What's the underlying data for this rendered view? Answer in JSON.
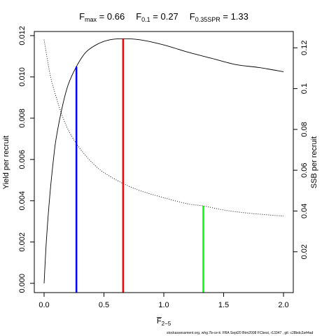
{
  "title": {
    "parts": [
      {
        "main": "F",
        "sub": "max",
        "value": " = 0.66"
      },
      {
        "main": "F",
        "sub": "0.1",
        "value": " = 0.27"
      },
      {
        "main": "F",
        "sub": "0.35SPR",
        "value": " = 1.33"
      }
    ]
  },
  "footer": "stockassessment.org, whg.7b-ce-k: FRA Sept20 Btrn2008 FCbest, r13347 , git: c28bdc2a44ad",
  "chart_data": {
    "type": "line",
    "xlabel": {
      "main": "F",
      "sub": "2−5",
      "overline": true
    },
    "ylabel_left": "Yield per recruit",
    "ylabel_right": "SSB per recruit",
    "xlim": [
      0,
      2
    ],
    "ylim_left": [
      -0.00045,
      0.0122
    ],
    "ylim_right": [
      0.0,
      0.128
    ],
    "x_ticks": [
      {
        "value": 0.0,
        "label": "0.0"
      },
      {
        "value": 0.5,
        "label": "0.5"
      },
      {
        "value": 1.0,
        "label": "1.0"
      },
      {
        "value": 1.5,
        "label": "1.5"
      },
      {
        "value": 2.0,
        "label": "2.0"
      }
    ],
    "y_left_ticks": [
      {
        "value": 0.0,
        "label": "0.000"
      },
      {
        "value": 0.002,
        "label": "0.002"
      },
      {
        "value": 0.004,
        "label": "0.004"
      },
      {
        "value": 0.006,
        "label": "0.006"
      },
      {
        "value": 0.008,
        "label": "0.008"
      },
      {
        "value": 0.01,
        "label": "0.010"
      },
      {
        "value": 0.012,
        "label": "0.012"
      }
    ],
    "y_right_ticks": [
      {
        "value": 0.02,
        "label": "0.02"
      },
      {
        "value": 0.04,
        "label": "0.04"
      },
      {
        "value": 0.06,
        "label": "0.06"
      },
      {
        "value": 0.08,
        "label": "0.08"
      },
      {
        "value": 0.1,
        "label": "0.1"
      },
      {
        "value": 0.12,
        "label": "0.12"
      }
    ],
    "grid": false,
    "series": [
      {
        "axis": "left",
        "style": "solid",
        "color": "#000000",
        "x": [
          0.0,
          0.02,
          0.05,
          0.08,
          0.1,
          0.15,
          0.2,
          0.27,
          0.35,
          0.45,
          0.55,
          0.66,
          0.8,
          1.0,
          1.2,
          1.4,
          1.6,
          1.8,
          2.0
        ],
        "y": [
          0.0,
          0.00215,
          0.0044,
          0.0061,
          0.007,
          0.0085,
          0.0096,
          0.0105,
          0.0112,
          0.0116,
          0.0118,
          0.01185,
          0.0118,
          0.01155,
          0.0112,
          0.0109,
          0.0106,
          0.01045,
          0.01025
        ]
      },
      {
        "axis": "right",
        "style": "dotted",
        "color": "#000000",
        "x": [
          0.0,
          0.05,
          0.1,
          0.15,
          0.2,
          0.27,
          0.35,
          0.45,
          0.55,
          0.66,
          0.8,
          1.0,
          1.2,
          1.33,
          1.5,
          1.7,
          2.0
        ],
        "y": [
          0.124,
          0.107,
          0.096,
          0.087,
          0.08,
          0.073,
          0.067,
          0.061,
          0.057,
          0.0535,
          0.05,
          0.0465,
          0.0435,
          0.0425,
          0.0405,
          0.039,
          0.0375
        ]
      }
    ],
    "reference_lines": [
      {
        "x": 0.27,
        "axis": "left",
        "y_top": 0.0105,
        "color": "#0000ff"
      },
      {
        "x": 0.66,
        "axis": "left",
        "y_top": 0.01185,
        "color": "#ff0000"
      },
      {
        "x": 1.33,
        "axis": "right",
        "y_top": 0.0425,
        "color": "#00ff00"
      }
    ]
  }
}
